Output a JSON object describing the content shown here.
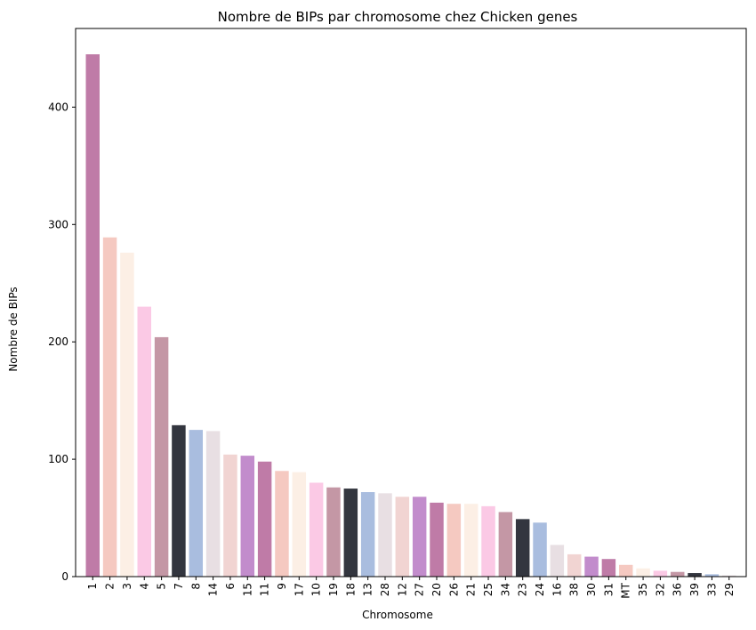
{
  "chart_data": {
    "type": "bar",
    "title": "Nombre de BIPs par chromosome chez Chicken genes",
    "xlabel": "Chromosome",
    "ylabel": "Nombre de BIPs",
    "ylim": [
      0,
      467
    ],
    "yticks": [
      0,
      100,
      200,
      300,
      400
    ],
    "grid": false,
    "categories": [
      "1",
      "2",
      "3",
      "4",
      "5",
      "7",
      "8",
      "14",
      "6",
      "15",
      "11",
      "9",
      "17",
      "10",
      "19",
      "18",
      "13",
      "28",
      "12",
      "27",
      "20",
      "26",
      "21",
      "25",
      "34",
      "23",
      "24",
      "16",
      "38",
      "30",
      "31",
      "MT",
      "35",
      "32",
      "36",
      "39",
      "33",
      "29"
    ],
    "values": [
      445,
      289,
      276,
      230,
      204,
      129,
      125,
      124,
      104,
      103,
      98,
      90,
      89,
      80,
      76,
      75,
      72,
      71,
      68,
      68,
      63,
      62,
      62,
      60,
      55,
      49,
      46,
      27,
      19,
      17,
      15,
      10,
      7,
      5,
      4,
      3,
      2,
      1
    ],
    "colors": [
      "#bf7ba7",
      "#f5c9c1",
      "#fcefe5",
      "#fbc9e5",
      "#c497a5",
      "#33363f",
      "#a9bddf",
      "#e8dfe3",
      "#f1d4d2",
      "#c28ccc",
      "#bf7ba7",
      "#f5c9c1",
      "#fcefe5",
      "#fbc9e5",
      "#c497a5",
      "#33363f",
      "#a9bddf",
      "#e8dfe3",
      "#f1d4d2",
      "#c28ccc",
      "#bf7ba7",
      "#f5c9c1",
      "#fcefe5",
      "#fbc9e5",
      "#c497a5",
      "#33363f",
      "#a9bddf",
      "#e8dfe3",
      "#f1d4d2",
      "#c28ccc",
      "#bf7ba7",
      "#f5c9c1",
      "#fcefe5",
      "#fbc9e5",
      "#c497a5",
      "#33363f",
      "#a9bddf",
      "#e8dfe3"
    ]
  }
}
